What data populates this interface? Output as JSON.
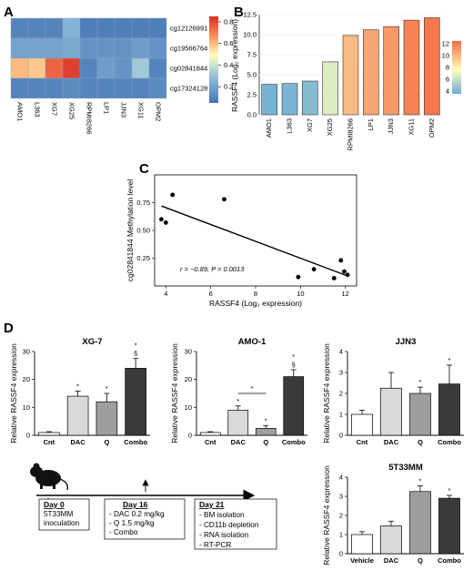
{
  "panel_labels": [
    "A",
    "B",
    "C",
    "D"
  ],
  "colormap": {
    "low": "#4575b4",
    "mid": "#ffffbf",
    "high": "#d73027"
  },
  "chart_data": [
    {
      "id": "A",
      "type": "heatmap",
      "columns": [
        "AMO1",
        "L363",
        "XG7",
        "XG25",
        "RPMI8266",
        "LP1",
        "JJN3",
        "XG11",
        "OPM2"
      ],
      "rows": [
        "cg12126991",
        "cg19566764",
        "cg02841844",
        "cg17324128"
      ],
      "values": [
        [
          0.1,
          0.1,
          0.1,
          0.25,
          0.08,
          0.08,
          0.08,
          0.08,
          0.08
        ],
        [
          0.2,
          0.2,
          0.2,
          0.22,
          0.15,
          0.15,
          0.15,
          0.18,
          0.15
        ],
        [
          0.6,
          0.58,
          0.75,
          0.82,
          0.1,
          0.18,
          0.15,
          0.32,
          0.1
        ],
        [
          0.1,
          0.1,
          0.1,
          0.12,
          0.1,
          0.1,
          0.1,
          0.1,
          0.12
        ]
      ],
      "colorbar_ticks": [
        "0.2",
        "0.4",
        "0.6",
        "0.8"
      ],
      "colorbar_range": [
        0.05,
        0.85
      ]
    },
    {
      "id": "B",
      "type": "bar",
      "categories": [
        "AMO1",
        "L363",
        "XG7",
        "XG25",
        "RPMI8266",
        "LP1",
        "JJN3",
        "XG11",
        "OPM2"
      ],
      "values": [
        3.8,
        3.9,
        4.2,
        6.6,
        9.9,
        10.6,
        11.0,
        11.8,
        12.1
      ],
      "ylabel": "RASSF4 (Log₂ expression)",
      "ylim": [
        0,
        12.5
      ],
      "yticks": [
        "0.0",
        "2.5",
        "5.0",
        "7.5",
        "10.0",
        "12.5"
      ],
      "colorbar_ticks": [
        "4",
        "6",
        "8",
        "10",
        "12"
      ],
      "colorbar_range": [
        3.5,
        12.5
      ]
    },
    {
      "id": "C",
      "type": "scatter",
      "points": [
        [
          3.8,
          0.6
        ],
        [
          4.0,
          0.57
        ],
        [
          4.3,
          0.82
        ],
        [
          6.6,
          0.78
        ],
        [
          9.9,
          0.08
        ],
        [
          10.6,
          0.15
        ],
        [
          11.5,
          0.07
        ],
        [
          11.8,
          0.23
        ],
        [
          11.95,
          0.13
        ],
        [
          12.1,
          0.1
        ]
      ],
      "fit_line": [
        [
          3.8,
          0.72
        ],
        [
          12.1,
          0.09
        ]
      ],
      "xlabel": "RASSF4 (Log₂ expression)",
      "ylabel": "cg02841844 Methylation level",
      "xticks": [
        "4",
        "6",
        "8",
        "10",
        "12"
      ],
      "yticks": [
        "0.25",
        "0.50",
        "0.75"
      ],
      "xlim": [
        3.5,
        12.5
      ],
      "ylim": [
        0,
        1.0
      ],
      "annotation": "r = −0.89, P = 0.0013"
    },
    {
      "id": "D-XG7",
      "type": "bar",
      "title": "XG-7",
      "categories": [
        "Cnt",
        "DAC",
        "Q",
        "Combo"
      ],
      "values": [
        1,
        14,
        12,
        24
      ],
      "errors": [
        0.3,
        1.8,
        3,
        3.5
      ],
      "marks": [
        "",
        "*",
        "*",
        "*§"
      ],
      "ylabel": "Relative RASSF4 expression",
      "ylim": [
        0,
        30
      ],
      "yticks": [
        "0",
        "10",
        "20",
        "30"
      ]
    },
    {
      "id": "D-AMO1",
      "type": "bar",
      "title": "AMO-1",
      "categories": [
        "Cnt",
        "DAC",
        "Q",
        "Combo"
      ],
      "values": [
        1,
        9,
        2.5,
        21
      ],
      "errors": [
        0.3,
        1.5,
        1,
        2.5
      ],
      "marks": [
        "",
        "*",
        "*",
        "*§"
      ],
      "bracket_mark": "*",
      "ylabel": "Relative RASSF4 expression",
      "ylim": [
        0,
        30
      ],
      "yticks": [
        "0",
        "10",
        "20",
        "30"
      ]
    },
    {
      "id": "D-JJN3",
      "type": "bar",
      "title": "JJN3",
      "categories": [
        "Cnt",
        "DAC",
        "Q",
        "Combo"
      ],
      "values": [
        1,
        2.25,
        2,
        2.45
      ],
      "errors": [
        0.2,
        0.75,
        0.3,
        0.9
      ],
      "marks": [
        "",
        "",
        "*",
        "*"
      ],
      "ylabel": "Relative RASSF4 expression",
      "ylim": [
        0,
        4
      ],
      "yticks": [
        "0",
        "1",
        "2",
        "3",
        "4"
      ]
    },
    {
      "id": "D-5T33MM",
      "type": "bar",
      "title": "5T33MM",
      "categories": [
        "Vehicle",
        "DAC",
        "Q",
        "Combo"
      ],
      "values": [
        1,
        1.45,
        3.25,
        2.9
      ],
      "errors": [
        0.15,
        0.25,
        0.3,
        0.15
      ],
      "marks": [
        "",
        "",
        "*",
        "*"
      ],
      "ylabel": "Relative RASSF4 expression",
      "ylim": [
        0,
        4
      ],
      "yticks": [
        "0",
        "1",
        "2",
        "3",
        "4"
      ]
    }
  ],
  "timeline": {
    "boxes": [
      {
        "title": "Day 0",
        "lines": [
          "5T33MM",
          "inoculation"
        ]
      },
      {
        "title": "Day 16",
        "lines": [
          "- DAC 0.2 mg/kg",
          "- Q 1.5 mg/kg",
          "- Combo"
        ]
      },
      {
        "title": "Day 21",
        "lines": [
          "- BM isolation",
          "- CD11b depletion",
          "- RNA isolation",
          "- RT-PCR"
        ]
      }
    ]
  }
}
